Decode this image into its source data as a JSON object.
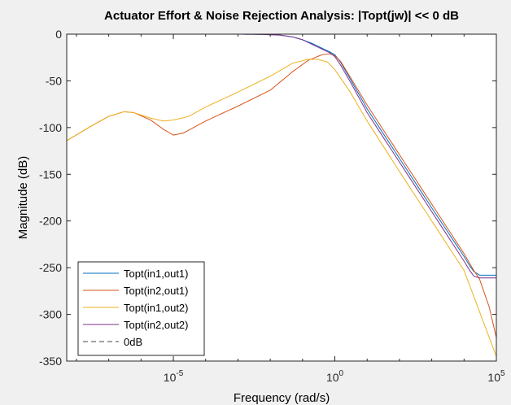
{
  "chart_data": {
    "type": "line",
    "title": "Actuator Effort & Noise Rejection Analysis: |Topt(jw)| << 0 dB",
    "xlabel": "Frequency  (rad/s)",
    "ylabel": "Magnitude (dB)",
    "xscale": "log",
    "xlim": [
      5e-09,
      100000
    ],
    "ylim": [
      -350,
      0
    ],
    "x_ticks": [
      {
        "value": 1e-05,
        "base": "10",
        "exp": "-5"
      },
      {
        "value": 1,
        "base": "10",
        "exp": "0"
      },
      {
        "value": 100000,
        "base": "10",
        "exp": "5"
      }
    ],
    "y_ticks": [
      {
        "value": 0,
        "label": "0"
      },
      {
        "value": -50,
        "label": "-50"
      },
      {
        "value": -100,
        "label": "-100"
      },
      {
        "value": -150,
        "label": "-150"
      },
      {
        "value": -200,
        "label": "-200"
      },
      {
        "value": -250,
        "label": "-250"
      },
      {
        "value": -300,
        "label": "-300"
      },
      {
        "value": -350,
        "label": "-350"
      }
    ],
    "grid": false,
    "legend_position": "bottom-left",
    "series": [
      {
        "name": "Topt(in1,out1)",
        "color": "#0072bd",
        "style": "solid",
        "points": [
          [
            5e-09,
            0
          ],
          [
            0.001,
            0
          ],
          [
            0.005,
            -0.2
          ],
          [
            0.02,
            -1
          ],
          [
            0.05,
            -3
          ],
          [
            0.1,
            -6
          ],
          [
            0.2,
            -10
          ],
          [
            0.4,
            -15
          ],
          [
            0.7,
            -19
          ],
          [
            1,
            -22
          ],
          [
            1.5,
            -30
          ],
          [
            3,
            -48
          ],
          [
            10,
            -80
          ],
          [
            100,
            -133
          ],
          [
            1000,
            -186
          ],
          [
            10000,
            -238
          ],
          [
            15000,
            -248
          ],
          [
            20000,
            -254
          ],
          [
            30000,
            -258
          ],
          [
            100000,
            -258
          ]
        ]
      },
      {
        "name": "Topt(in2,out1)",
        "color": "#d95319",
        "style": "solid",
        "points": [
          [
            5e-09,
            -114
          ],
          [
            3e-08,
            -98
          ],
          [
            1e-07,
            -88
          ],
          [
            3e-07,
            -83
          ],
          [
            6e-07,
            -84
          ],
          [
            2e-06,
            -92
          ],
          [
            5e-06,
            -102
          ],
          [
            1e-05,
            -108
          ],
          [
            2e-05,
            -106
          ],
          [
            0.0001,
            -93
          ],
          [
            0.001,
            -77
          ],
          [
            0.01,
            -60
          ],
          [
            0.05,
            -40
          ],
          [
            0.15,
            -28
          ],
          [
            0.4,
            -22
          ],
          [
            0.7,
            -21
          ],
          [
            1,
            -23
          ],
          [
            1.5,
            -29
          ],
          [
            3,
            -46
          ],
          [
            10,
            -76
          ],
          [
            100,
            -129
          ],
          [
            1000,
            -182
          ],
          [
            10000,
            -235
          ],
          [
            20000,
            -253
          ],
          [
            30000,
            -262
          ],
          [
            60000,
            -292
          ],
          [
            100000,
            -325
          ]
        ]
      },
      {
        "name": "Topt(in1,out2)",
        "color": "#edb120",
        "style": "solid",
        "points": [
          [
            5e-09,
            -114
          ],
          [
            3e-08,
            -98
          ],
          [
            1e-07,
            -88
          ],
          [
            3e-07,
            -83
          ],
          [
            6e-07,
            -84
          ],
          [
            2e-06,
            -90
          ],
          [
            5e-06,
            -93
          ],
          [
            1e-05,
            -92
          ],
          [
            3e-05,
            -88
          ],
          [
            0.0001,
            -78
          ],
          [
            0.001,
            -62
          ],
          [
            0.01,
            -45
          ],
          [
            0.05,
            -31
          ],
          [
            0.15,
            -27
          ],
          [
            0.3,
            -27
          ],
          [
            0.6,
            -30
          ],
          [
            1,
            -38
          ],
          [
            3,
            -62
          ],
          [
            10,
            -93
          ],
          [
            100,
            -147
          ],
          [
            1000,
            -200
          ],
          [
            10000,
            -253
          ],
          [
            100000,
            -345
          ]
        ]
      },
      {
        "name": "Topt(in2,out2)",
        "color": "#7e2f8e",
        "style": "solid",
        "points": [
          [
            5e-09,
            0
          ],
          [
            0.001,
            0
          ],
          [
            0.005,
            -0.2
          ],
          [
            0.02,
            -1
          ],
          [
            0.05,
            -3
          ],
          [
            0.1,
            -6
          ],
          [
            0.2,
            -11
          ],
          [
            0.4,
            -16
          ],
          [
            0.7,
            -20
          ],
          [
            1,
            -24
          ],
          [
            1.5,
            -33
          ],
          [
            3,
            -51
          ],
          [
            10,
            -84
          ],
          [
            100,
            -137
          ],
          [
            1000,
            -190
          ],
          [
            10000,
            -243
          ],
          [
            15000,
            -253
          ],
          [
            20000,
            -259
          ],
          [
            30000,
            -261
          ],
          [
            100000,
            -261
          ]
        ]
      },
      {
        "name": "0dB",
        "color": "#444444",
        "style": "dashed",
        "points": [
          [
            5e-09,
            0
          ],
          [
            100000,
            0
          ]
        ]
      }
    ]
  }
}
